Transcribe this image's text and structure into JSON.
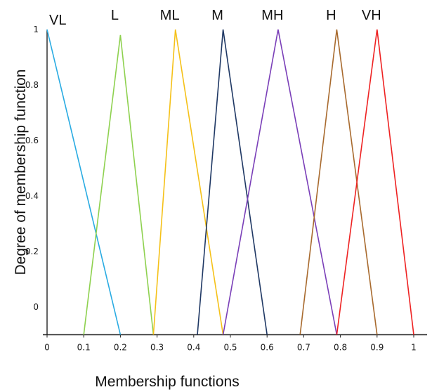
{
  "chart_data": {
    "type": "line",
    "title": "",
    "xlabel": "Membership functions",
    "ylabel": "Degree of membership function",
    "xlim": [
      0,
      1
    ],
    "ylim": [
      -0.1,
      1
    ],
    "xticks": [
      "0",
      "0.1",
      "0.2",
      "0.3",
      "0.4",
      "0.5",
      "0.6",
      "0.7",
      "0.8",
      "0.9",
      "1"
    ],
    "yticks": [
      "0",
      "0.2",
      "0.4",
      "0.6",
      "0.8",
      "1"
    ],
    "grid": false,
    "legend": "none",
    "series": [
      {
        "name": "VL",
        "color": "#29abe2",
        "x": [
          0,
          0.2
        ],
        "y": [
          1,
          -0.1
        ]
      },
      {
        "name": "L",
        "color": "#8ed14f",
        "x": [
          0.1,
          0.2,
          0.29
        ],
        "y": [
          -0.1,
          0.98,
          -0.1
        ]
      },
      {
        "name": "ML",
        "color": "#f5c118",
        "x": [
          0.29,
          0.35,
          0.48
        ],
        "y": [
          -0.1,
          1,
          -0.1
        ]
      },
      {
        "name": "M",
        "color": "#1f3864",
        "x": [
          0.41,
          0.48,
          0.6
        ],
        "y": [
          -0.1,
          1,
          -0.1
        ]
      },
      {
        "name": "MH",
        "color": "#7a3fb8",
        "x": [
          0.48,
          0.63,
          0.79
        ],
        "y": [
          -0.1,
          1,
          -0.1
        ]
      },
      {
        "name": "H",
        "color": "#a86a2e",
        "x": [
          0.69,
          0.79,
          0.9
        ],
        "y": [
          -0.1,
          1,
          -0.1
        ]
      },
      {
        "name": "VH",
        "color": "#ee2222",
        "x": [
          0.79,
          0.9,
          1.0
        ],
        "y": [
          -0.1,
          1,
          -0.1
        ]
      }
    ]
  }
}
